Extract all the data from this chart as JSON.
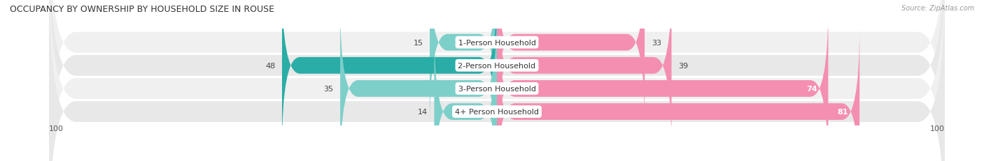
{
  "title": "OCCUPANCY BY OWNERSHIP BY HOUSEHOLD SIZE IN ROUSE",
  "source": "Source: ZipAtlas.com",
  "categories": [
    "1-Person Household",
    "2-Person Household",
    "3-Person Household",
    "4+ Person Household"
  ],
  "owner_values": [
    15,
    48,
    35,
    14
  ],
  "renter_values": [
    33,
    39,
    74,
    81
  ],
  "owner_color_light": "#7dcfca",
  "owner_color_dark": "#2aada6",
  "renter_color": "#f48fb1",
  "row_bg_light": "#f0f0f0",
  "row_bg_dark": "#e8e8e8",
  "xlim": 100,
  "title_fontsize": 9,
  "label_fontsize": 8,
  "value_fontsize": 8,
  "axis_fontsize": 8,
  "source_fontsize": 7
}
